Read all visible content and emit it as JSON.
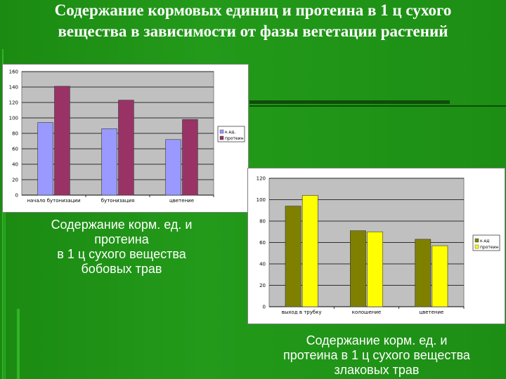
{
  "slide": {
    "title_line1": "Содержание  кормовых единиц и протеина в 1 ц сухого",
    "title_line2": "вещества в зависимости от фазы вегетации растений"
  },
  "captions": {
    "legumes": [
      "Содержание  корм. ед. и",
      "протеина",
      "в 1 ц сухого вещества",
      "бобовых трав"
    ],
    "grasses": [
      "Содержание  корм. ед. и",
      "протеина в 1 ц сухого вещества",
      "злаковых трав"
    ]
  },
  "chart_data": [
    {
      "type": "bar",
      "categories": [
        "начало бутонизации",
        "бутонизация",
        "цветение"
      ],
      "series": [
        {
          "name": "к.ед.",
          "values": [
            94,
            86,
            72
          ],
          "color": "#9999ff"
        },
        {
          "name": "протеин",
          "values": [
            141,
            123,
            98
          ],
          "color": "#993366"
        }
      ],
      "ylim": [
        0,
        160
      ],
      "yticks": [
        0,
        20,
        40,
        60,
        80,
        100,
        120,
        140,
        160
      ],
      "grid": true,
      "legend": "right",
      "plot_bg": "#c0c0c0"
    },
    {
      "type": "bar",
      "categories": [
        "выход в трубку",
        "колошение",
        "цветение"
      ],
      "series": [
        {
          "name": "к.ед",
          "values": [
            94,
            71,
            63
          ],
          "color": "#808000"
        },
        {
          "name": "протеин",
          "values": [
            104,
            70,
            57
          ],
          "color": "#ffff00"
        }
      ],
      "ylim": [
        0,
        120
      ],
      "yticks": [
        0,
        20,
        40,
        60,
        80,
        100,
        120
      ],
      "grid": true,
      "legend": "right",
      "plot_bg": "#c0c0c0"
    }
  ]
}
